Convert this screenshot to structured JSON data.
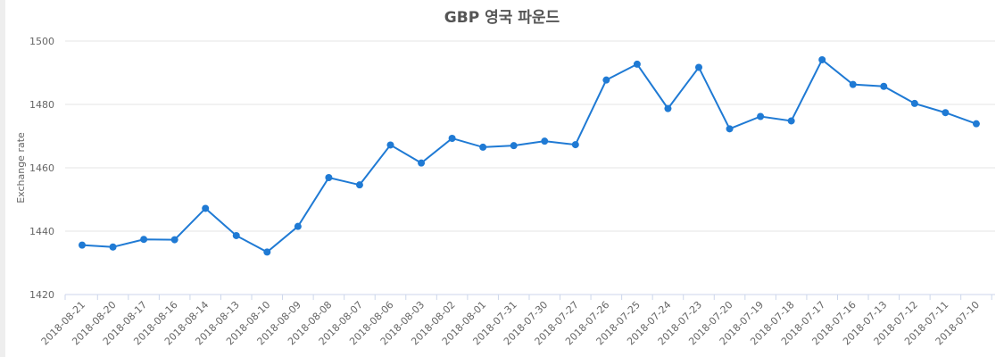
{
  "chart_data": {
    "type": "line",
    "title": "GBP 영국 파운드",
    "xlabel": "",
    "ylabel": "Exchange rate",
    "ylim": [
      1420,
      1500
    ],
    "yticks": [
      1420,
      1440,
      1460,
      1480,
      1500
    ],
    "grid": true,
    "legend": "none",
    "categories": [
      "2018-08-21",
      "2018-08-20",
      "2018-08-17",
      "2018-08-16",
      "2018-08-14",
      "2018-08-13",
      "2018-08-10",
      "2018-08-09",
      "2018-08-08",
      "2018-08-07",
      "2018-08-06",
      "2018-08-03",
      "2018-08-02",
      "2018-08-01",
      "2018-07-31",
      "2018-07-30",
      "2018-07-27",
      "2018-07-26",
      "2018-07-25",
      "2018-07-24",
      "2018-07-23",
      "2018-07-20",
      "2018-07-19",
      "2018-07-18",
      "2018-07-17",
      "2018-07-16",
      "2018-07-13",
      "2018-07-12",
      "2018-07-11",
      "2018-07-10"
    ],
    "series": [
      {
        "values": [
          1435.6,
          1435.0,
          1437.4,
          1437.3,
          1447.2,
          1438.6,
          1433.4,
          1441.5,
          1456.9,
          1454.6,
          1467.2,
          1461.5,
          1469.3,
          1466.5,
          1467.0,
          1468.4,
          1467.3,
          1487.7,
          1492.7,
          1478.7,
          1491.7,
          1472.3,
          1476.2,
          1474.8,
          1494.1,
          1486.3,
          1485.7,
          1480.3,
          1477.4,
          1473.9
        ],
        "color": "#1f7ad4"
      }
    ]
  }
}
